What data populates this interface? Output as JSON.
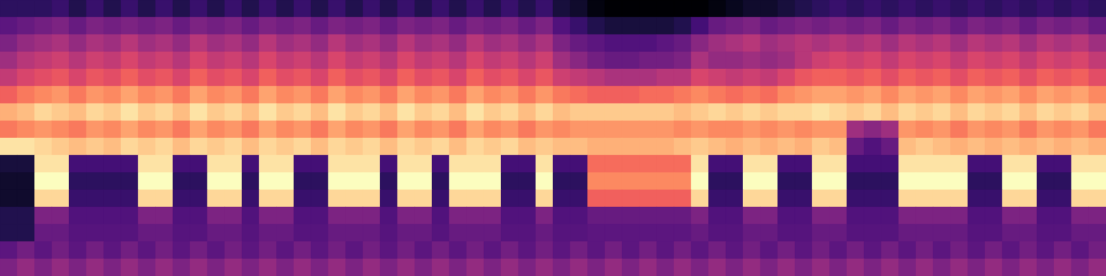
{
  "chart_data": {
    "type": "heatmap",
    "color": "magma",
    "tick_labels": false,
    "cells": [
      [
        20,
        20,
        20,
        22,
        18,
        22,
        18,
        22,
        18,
        22,
        18,
        22,
        18,
        22,
        18,
        22,
        18,
        22,
        18,
        22,
        18,
        22,
        18,
        22,
        18,
        22,
        18,
        22,
        18,
        22,
        18,
        22,
        16,
        14,
        10,
        8,
        8,
        8,
        8,
        8,
        8,
        10,
        12,
        14,
        14,
        16,
        18,
        20,
        22,
        20,
        22,
        20,
        22,
        20,
        22,
        20,
        22,
        20,
        22,
        20,
        22,
        20,
        22,
        20
      ],
      [
        28,
        30,
        32,
        34,
        30,
        34,
        32,
        34,
        32,
        34,
        30,
        34,
        32,
        34,
        30,
        34,
        32,
        34,
        30,
        34,
        32,
        34,
        30,
        34,
        32,
        34,
        30,
        34,
        32,
        34,
        30,
        34,
        26,
        22,
        18,
        16,
        16,
        16,
        16,
        18,
        24,
        30,
        32,
        34,
        30,
        32,
        34,
        32,
        34,
        32,
        34,
        30,
        34,
        32,
        34,
        30,
        34,
        32,
        34,
        30,
        34,
        32,
        34,
        30
      ],
      [
        34,
        38,
        40,
        42,
        38,
        42,
        40,
        44,
        40,
        42,
        38,
        44,
        40,
        42,
        38,
        44,
        40,
        42,
        38,
        44,
        40,
        42,
        38,
        44,
        40,
        42,
        38,
        44,
        40,
        42,
        38,
        42,
        34,
        30,
        28,
        26,
        26,
        26,
        28,
        30,
        36,
        40,
        42,
        44,
        40,
        42,
        44,
        42,
        44,
        42,
        44,
        40,
        44,
        42,
        44,
        40,
        44,
        42,
        44,
        40,
        44,
        42,
        44,
        40
      ],
      [
        40,
        44,
        46,
        48,
        44,
        48,
        46,
        50,
        46,
        48,
        44,
        50,
        46,
        48,
        44,
        50,
        46,
        48,
        44,
        50,
        46,
        48,
        44,
        50,
        46,
        48,
        44,
        50,
        46,
        48,
        44,
        48,
        40,
        36,
        32,
        30,
        30,
        32,
        32,
        34,
        42,
        38,
        38,
        40,
        38,
        40,
        44,
        48,
        50,
        48,
        50,
        46,
        50,
        48,
        50,
        46,
        50,
        48,
        50,
        46,
        50,
        48,
        50,
        46
      ],
      [
        46,
        50,
        52,
        54,
        50,
        54,
        52,
        56,
        52,
        54,
        50,
        56,
        52,
        54,
        50,
        56,
        52,
        54,
        50,
        56,
        52,
        54,
        50,
        56,
        52,
        54,
        50,
        56,
        52,
        54,
        50,
        54,
        48,
        46,
        44,
        42,
        42,
        42,
        44,
        44,
        50,
        48,
        46,
        48,
        46,
        50,
        54,
        56,
        56,
        54,
        56,
        52,
        56,
        54,
        56,
        52,
        56,
        54,
        56,
        52,
        56,
        54,
        56,
        52
      ],
      [
        56,
        60,
        62,
        64,
        60,
        64,
        62,
        66,
        62,
        64,
        60,
        66,
        62,
        64,
        60,
        66,
        62,
        64,
        60,
        66,
        62,
        64,
        60,
        66,
        62,
        64,
        60,
        66,
        62,
        64,
        60,
        64,
        60,
        58,
        56,
        56,
        56,
        58,
        58,
        60,
        62,
        60,
        58,
        60,
        58,
        62,
        64,
        66,
        66,
        64,
        66,
        62,
        66,
        64,
        66,
        62,
        66,
        64,
        66,
        62,
        66,
        64,
        66,
        62
      ],
      [
        68,
        70,
        74,
        72,
        70,
        74,
        72,
        76,
        72,
        74,
        70,
        76,
        72,
        74,
        70,
        76,
        72,
        74,
        70,
        76,
        72,
        74,
        70,
        76,
        72,
        74,
        70,
        76,
        72,
        74,
        70,
        74,
        70,
        72,
        72,
        72,
        72,
        72,
        72,
        70,
        72,
        74,
        72,
        74,
        72,
        74,
        74,
        76,
        74,
        72,
        74,
        70,
        74,
        72,
        74,
        70,
        74,
        72,
        74,
        70,
        74,
        72,
        74,
        70
      ],
      [
        60,
        62,
        64,
        62,
        60,
        64,
        62,
        66,
        62,
        64,
        60,
        66,
        62,
        64,
        60,
        66,
        62,
        64,
        60,
        66,
        62,
        64,
        60,
        66,
        62,
        64,
        60,
        66,
        62,
        64,
        60,
        64,
        62,
        64,
        64,
        64,
        64,
        64,
        64,
        62,
        64,
        62,
        62,
        64,
        62,
        64,
        62,
        64,
        64,
        40,
        36,
        40,
        64,
        62,
        64,
        60,
        64,
        62,
        64,
        60,
        64,
        62,
        64,
        60
      ],
      [
        76,
        76,
        74,
        72,
        70,
        72,
        70,
        74,
        72,
        74,
        70,
        74,
        72,
        74,
        70,
        74,
        72,
        74,
        70,
        74,
        72,
        74,
        70,
        74,
        72,
        74,
        70,
        74,
        72,
        74,
        70,
        72,
        70,
        70,
        68,
        68,
        68,
        68,
        68,
        70,
        72,
        70,
        68,
        70,
        68,
        70,
        68,
        72,
        70,
        30,
        26,
        30,
        70,
        72,
        70,
        68,
        70,
        68,
        70,
        68,
        70,
        68,
        70,
        68
      ],
      [
        16,
        16,
        76,
        76,
        24,
        24,
        24,
        24,
        76,
        76,
        24,
        24,
        76,
        76,
        24,
        76,
        76,
        24,
        24,
        76,
        76,
        76,
        24,
        76,
        76,
        24,
        76,
        76,
        76,
        24,
        24,
        76,
        24,
        24,
        58,
        58,
        58,
        58,
        58,
        58,
        76,
        24,
        24,
        76,
        76,
        24,
        24,
        76,
        76,
        24,
        24,
        24,
        76,
        76,
        76,
        76,
        24,
        24,
        76,
        76,
        24,
        24,
        76,
        76
      ],
      [
        14,
        14,
        80,
        80,
        20,
        20,
        20,
        20,
        80,
        80,
        20,
        20,
        80,
        80,
        20,
        80,
        80,
        20,
        20,
        80,
        80,
        80,
        20,
        80,
        80,
        20,
        80,
        80,
        80,
        20,
        20,
        80,
        20,
        20,
        62,
        62,
        62,
        62,
        62,
        62,
        80,
        20,
        20,
        80,
        80,
        20,
        20,
        80,
        80,
        20,
        20,
        20,
        80,
        80,
        80,
        80,
        20,
        20,
        80,
        80,
        20,
        20,
        80,
        80
      ],
      [
        14,
        14,
        74,
        74,
        22,
        22,
        22,
        22,
        74,
        74,
        22,
        22,
        74,
        74,
        22,
        74,
        74,
        22,
        22,
        74,
        74,
        74,
        22,
        74,
        74,
        22,
        74,
        74,
        74,
        22,
        22,
        74,
        22,
        22,
        56,
        56,
        56,
        56,
        56,
        56,
        74,
        22,
        22,
        74,
        74,
        22,
        22,
        74,
        74,
        22,
        22,
        22,
        74,
        74,
        74,
        74,
        22,
        22,
        74,
        74,
        22,
        22,
        74,
        74
      ],
      [
        18,
        18,
        34,
        34,
        26,
        26,
        26,
        26,
        34,
        34,
        26,
        26,
        34,
        34,
        26,
        34,
        34,
        26,
        26,
        34,
        34,
        34,
        26,
        34,
        34,
        26,
        34,
        34,
        34,
        26,
        26,
        34,
        26,
        26,
        30,
        30,
        30,
        30,
        30,
        30,
        34,
        26,
        26,
        34,
        34,
        26,
        26,
        34,
        34,
        26,
        26,
        26,
        34,
        34,
        34,
        34,
        26,
        26,
        34,
        34,
        26,
        26,
        34,
        34
      ],
      [
        18,
        18,
        30,
        30,
        27,
        27,
        27,
        27,
        30,
        30,
        27,
        27,
        30,
        30,
        27,
        30,
        30,
        27,
        27,
        30,
        30,
        30,
        27,
        30,
        30,
        27,
        30,
        30,
        30,
        27,
        27,
        30,
        27,
        27,
        28,
        28,
        28,
        28,
        28,
        28,
        30,
        27,
        27,
        30,
        30,
        27,
        27,
        30,
        30,
        27,
        27,
        27,
        30,
        30,
        30,
        30,
        27,
        27,
        30,
        30,
        27,
        27,
        30,
        30
      ],
      [
        28,
        32,
        28,
        32,
        28,
        32,
        28,
        32,
        28,
        32,
        28,
        32,
        28,
        32,
        28,
        32,
        28,
        32,
        28,
        32,
        28,
        32,
        28,
        32,
        28,
        32,
        28,
        32,
        28,
        32,
        28,
        32,
        28,
        32,
        28,
        32,
        28,
        32,
        28,
        32,
        28,
        32,
        28,
        32,
        28,
        32,
        28,
        32,
        28,
        32,
        28,
        32,
        28,
        32,
        28,
        32,
        28,
        32,
        28,
        32,
        28,
        32,
        28,
        32
      ],
      [
        34,
        38,
        34,
        38,
        34,
        38,
        34,
        38,
        34,
        38,
        34,
        38,
        34,
        38,
        34,
        38,
        34,
        38,
        34,
        38,
        34,
        38,
        34,
        38,
        34,
        38,
        34,
        38,
        34,
        38,
        34,
        38,
        34,
        38,
        34,
        38,
        34,
        38,
        34,
        38,
        34,
        38,
        34,
        38,
        34,
        38,
        34,
        38,
        34,
        38,
        34,
        38,
        34,
        38,
        34,
        38,
        34,
        38,
        34,
        38,
        34,
        38,
        34,
        38
      ]
    ]
  }
}
